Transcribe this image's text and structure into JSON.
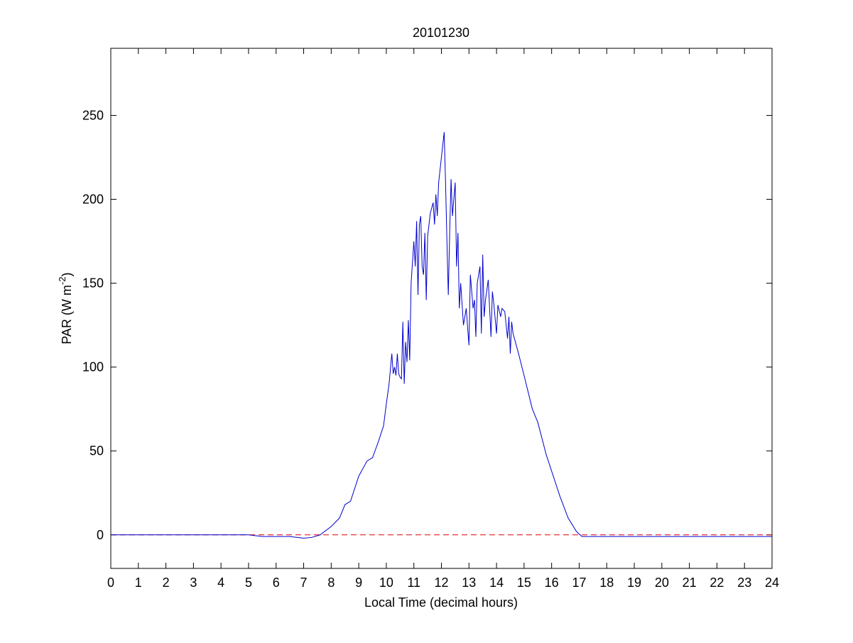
{
  "chart_data": {
    "type": "line",
    "title": "20101230",
    "x_label": "Local Time (decimal hours)",
    "y_label": "PAR (W m",
    "y_label_sup": "-2",
    "y_label_end": ")",
    "xlim": [
      0,
      24
    ],
    "xticks": [
      0,
      1,
      2,
      3,
      4,
      5,
      6,
      7,
      8,
      9,
      10,
      11,
      12,
      13,
      14,
      15,
      16,
      17,
      18,
      19,
      20,
      21,
      22,
      23,
      24
    ],
    "ylim": [
      -20,
      290
    ],
    "yticks": [
      0,
      50,
      100,
      150,
      200,
      250
    ],
    "reference_line": {
      "value": 0,
      "color": "#dd0000",
      "style": "dashed"
    },
    "x": [
      0,
      5,
      5.5,
      6.5,
      7,
      7.3,
      7.6,
      8,
      8.3,
      8.5,
      8.7,
      9,
      9.3,
      9.5,
      9.7,
      9.9,
      10,
      10.1,
      10.2,
      10.25,
      10.3,
      10.35,
      10.4,
      10.45,
      10.5,
      10.55,
      10.6,
      10.65,
      10.7,
      10.75,
      10.8,
      10.85,
      10.9,
      11,
      11.05,
      11.1,
      11.15,
      11.2,
      11.25,
      11.3,
      11.35,
      11.4,
      11.45,
      11.5,
      11.6,
      11.7,
      11.75,
      11.8,
      11.85,
      11.9,
      12,
      12.1,
      12.15,
      12.2,
      12.25,
      12.3,
      12.35,
      12.4,
      12.5,
      12.55,
      12.6,
      12.65,
      12.7,
      12.8,
      12.9,
      13,
      13.05,
      13.15,
      13.2,
      13.25,
      13.3,
      13.4,
      13.45,
      13.5,
      13.55,
      13.6,
      13.7,
      13.8,
      13.85,
      13.9,
      14,
      14.05,
      14.15,
      14.2,
      14.3,
      14.4,
      14.45,
      14.5,
      14.55,
      14.6,
      14.8,
      15,
      15.3,
      15.5,
      15.8,
      16,
      16.3,
      16.6,
      16.9,
      17.1,
      17.5,
      24
    ],
    "series": [
      {
        "color": "#0000cc",
        "values": [
          0,
          0,
          -1,
          -1,
          -2,
          -1.5,
          0,
          5,
          10,
          18,
          20,
          35,
          44,
          46,
          55,
          65,
          78,
          90,
          108,
          96,
          100,
          95,
          108,
          96,
          94,
          93,
          127,
          90,
          115,
          103,
          128,
          104,
          150,
          175,
          160,
          187,
          143,
          185,
          190,
          160,
          155,
          180,
          140,
          178,
          192,
          198,
          185,
          203,
          190,
          210,
          225,
          240,
          210,
          175,
          143,
          180,
          212,
          190,
          210,
          160,
          180,
          135,
          150,
          125,
          135,
          113,
          155,
          135,
          140,
          118,
          150,
          160,
          120,
          167,
          130,
          140,
          152,
          118,
          145,
          138,
          120,
          137,
          130,
          135,
          133,
          117,
          130,
          108,
          127,
          120,
          108,
          95,
          75,
          67,
          48,
          38,
          23,
          10,
          2,
          -1,
          -1,
          -1
        ]
      }
    ]
  }
}
